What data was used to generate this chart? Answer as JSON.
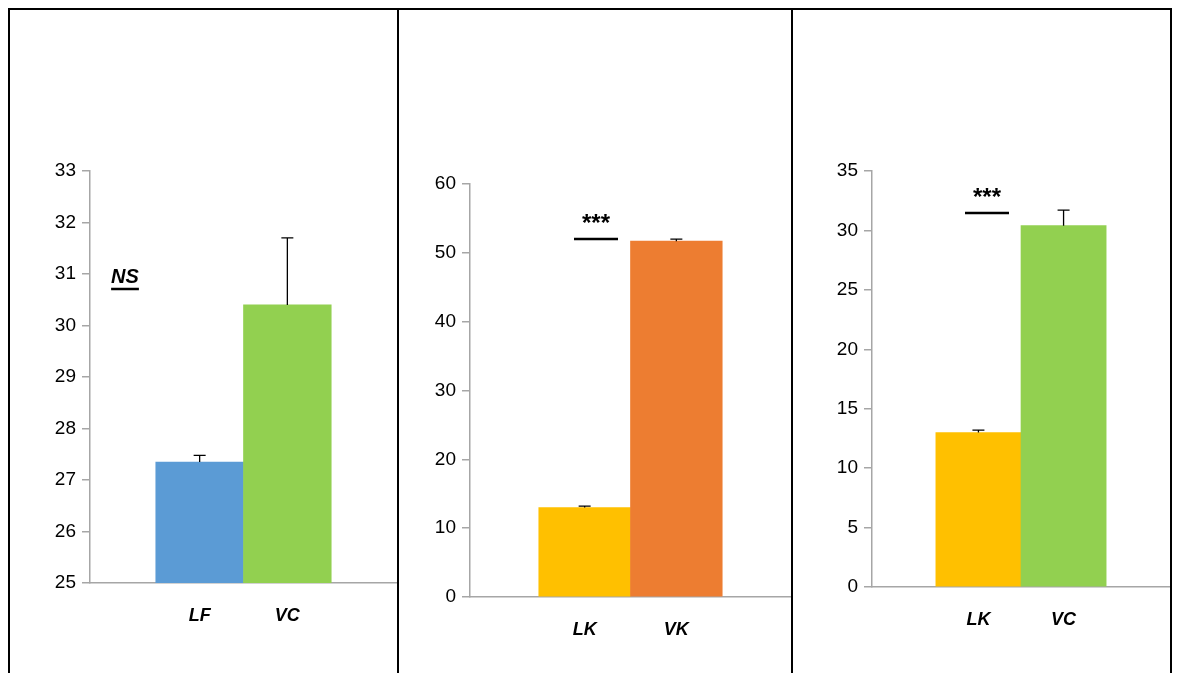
{
  "chart_data": [
    {
      "type": "bar",
      "categories": [
        "LF",
        "VC"
      ],
      "values": [
        27.35,
        30.4
      ],
      "colors": [
        "#5b9bd5",
        "#92d050"
      ],
      "errors": [
        [
          27.35,
          27.48
        ],
        [
          30.4,
          31.7
        ]
      ],
      "ylim": [
        25,
        33
      ],
      "yticks": [
        25,
        26,
        27,
        28,
        29,
        30,
        31,
        32,
        33
      ],
      "grid": false,
      "annotations": [
        "NS"
      ]
    },
    {
      "type": "bar",
      "categories": [
        "LK",
        "VK"
      ],
      "values": [
        13.0,
        51.7
      ],
      "colors": [
        "#ffc000",
        "#ed7d31"
      ],
      "errors": [
        [
          13.0,
          13.2
        ],
        [
          51.7,
          52.0
        ]
      ],
      "ylim": [
        0,
        60
      ],
      "yticks": [
        0,
        10,
        20,
        30,
        40,
        50,
        60
      ],
      "grid": false,
      "annotations": [
        "***"
      ]
    },
    {
      "type": "bar",
      "categories": [
        "LK",
        "VC"
      ],
      "values": [
        13.0,
        30.4
      ],
      "colors": [
        "#ffc000",
        "#92d050"
      ],
      "errors": [
        [
          13.0,
          13.2
        ],
        [
          30.4,
          31.7
        ]
      ],
      "ylim": [
        0,
        35
      ],
      "yticks": [
        0,
        5,
        10,
        15,
        20,
        25,
        30,
        35
      ],
      "grid": false,
      "annotations": [
        "***"
      ]
    }
  ]
}
